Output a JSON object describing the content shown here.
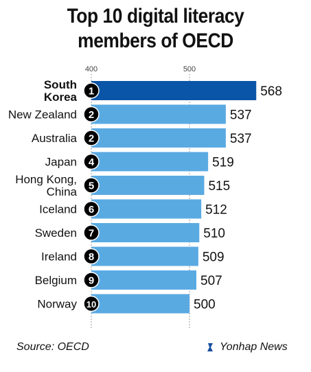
{
  "title_line1": "Top 10 digital literacy",
  "title_line2": "members of OECD",
  "source": "Source: OECD",
  "brand": "Yonhap News",
  "colors": {
    "highlight": "#0a55a8",
    "bar": "#5aaae2",
    "badge": "#000000",
    "grid": "#999999"
  },
  "chart_data": {
    "type": "bar",
    "orientation": "horizontal",
    "categories": [
      "South Korea",
      "New Zealand",
      "Australia",
      "Japan",
      "Hong Kong, China",
      "Iceland",
      "Sweden",
      "Ireland",
      "Belgium",
      "Norway"
    ],
    "category_lines": [
      [
        "South",
        "Korea"
      ],
      [
        "New Zealand"
      ],
      [
        "Australia"
      ],
      [
        "Japan"
      ],
      [
        "Hong Kong,",
        "China"
      ],
      [
        "Iceland"
      ],
      [
        "Sweden"
      ],
      [
        "Ireland"
      ],
      [
        "Belgium"
      ],
      [
        "Norway"
      ]
    ],
    "ranks": [
      "1",
      "2",
      "2",
      "4",
      "5",
      "6",
      "7",
      "8",
      "9",
      "10"
    ],
    "values": [
      568,
      537,
      537,
      519,
      515,
      512,
      510,
      509,
      507,
      500
    ],
    "tick_labels": [
      "400",
      "500"
    ],
    "ticks": [
      400,
      500
    ],
    "xlim": [
      400,
      568
    ],
    "highlight_index": 0
  }
}
